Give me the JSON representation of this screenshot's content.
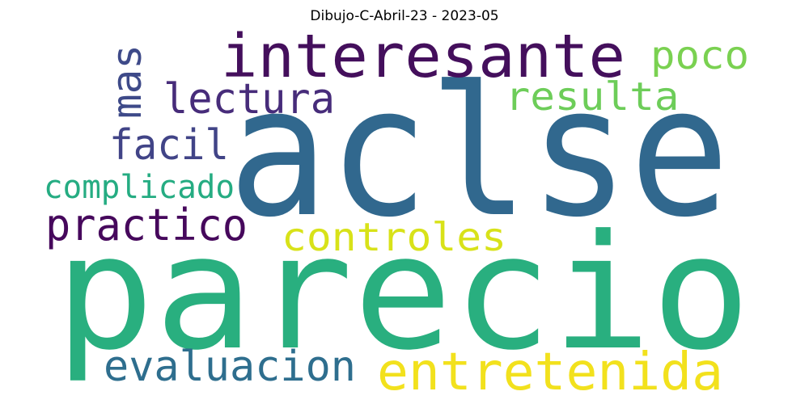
{
  "title": "Dibujo-C-Abril-23 - 2023-05",
  "words": [
    {
      "text": "aclse",
      "color": "#31688e"
    },
    {
      "text": "parecio",
      "color": "#29af7f"
    },
    {
      "text": "interesante",
      "color": "#440f5c"
    },
    {
      "text": "entretenida",
      "color": "#f2e11d"
    },
    {
      "text": "poco",
      "color": "#7ad151"
    },
    {
      "text": "resulta",
      "color": "#6dcd59"
    },
    {
      "text": "lectura",
      "color": "#472c7a"
    },
    {
      "text": "mas",
      "color": "#3e4a89"
    },
    {
      "text": "facil",
      "color": "#414487"
    },
    {
      "text": "complicado",
      "color": "#25ac82"
    },
    {
      "text": "practico",
      "color": "#46085c"
    },
    {
      "text": "controles",
      "color": "#d8e219"
    },
    {
      "text": "evaluacion",
      "color": "#2e6e8e"
    }
  ]
}
